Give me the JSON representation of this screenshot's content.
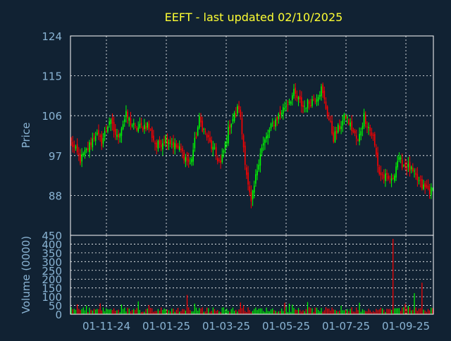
{
  "chart_data": [
    {
      "type": "candlestick",
      "title": "EEFT - last updated 02/10/2025",
      "ylabel": "Price",
      "ylim": [
        79,
        124
      ],
      "yticks": [
        124,
        115,
        106,
        97,
        88
      ],
      "xticks": [
        "01-11-24",
        "01-01-25",
        "01-03-25",
        "01-05-25",
        "01-07-25",
        "01-09-25"
      ],
      "grid": true,
      "colors": {
        "up": "#00ff00",
        "down": "#ff0000",
        "title": "#ffff33",
        "axis_text": "#8ab4d4",
        "frame": "#ffffff",
        "background": "#112233"
      },
      "anchors": [
        [
          0,
          100
        ],
        [
          6,
          96
        ],
        [
          10,
          98
        ],
        [
          16,
          102
        ],
        [
          20,
          100
        ],
        [
          25,
          105
        ],
        [
          30,
          101
        ],
        [
          36,
          106
        ],
        [
          42,
          103
        ],
        [
          50,
          104
        ],
        [
          56,
          99
        ],
        [
          62,
          101
        ],
        [
          72,
          98
        ],
        [
          78,
          95
        ],
        [
          84,
          105
        ],
        [
          92,
          99
        ],
        [
          98,
          95
        ],
        [
          104,
          104
        ],
        [
          110,
          108
        ],
        [
          116,
          90
        ],
        [
          118,
          86
        ],
        [
          124,
          98
        ],
        [
          132,
          104
        ],
        [
          140,
          108
        ],
        [
          146,
          111
        ],
        [
          152,
          108
        ],
        [
          160,
          110
        ],
        [
          164,
          112
        ],
        [
          172,
          101
        ],
        [
          180,
          106
        ],
        [
          188,
          100
        ],
        [
          192,
          106
        ],
        [
          198,
          101
        ],
        [
          202,
          93
        ],
        [
          210,
          91
        ],
        [
          214,
          96
        ],
        [
          222,
          94
        ],
        [
          230,
          90
        ],
        [
          236,
          89
        ]
      ]
    },
    {
      "type": "bar",
      "ylabel": "Volume (0000)",
      "ylim": [
        0,
        450
      ],
      "yticks": [
        450,
        400,
        350,
        300,
        250,
        200,
        150,
        100,
        50,
        0
      ],
      "xticks": [
        "01-11-24",
        "01-01-25",
        "01-03-25",
        "01-05-25",
        "01-07-25",
        "01-09-25"
      ],
      "base_range": [
        12,
        40
      ],
      "spikes": [
        {
          "day": 211,
          "value": 430
        },
        {
          "day": 230,
          "value": 180
        },
        {
          "day": 225,
          "value": 120
        },
        {
          "day": 76,
          "value": 110
        }
      ]
    }
  ]
}
